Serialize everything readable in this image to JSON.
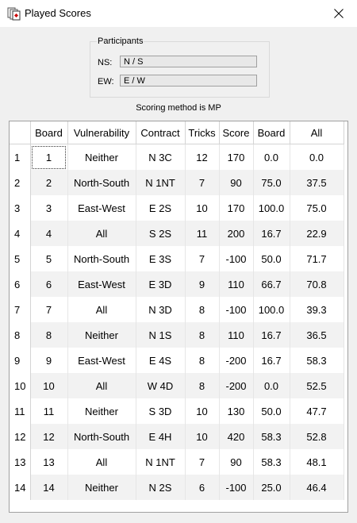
{
  "window": {
    "title": "Played Scores"
  },
  "participants": {
    "label": "Participants",
    "ns_label": "NS:",
    "ns_value": "N / S",
    "ew_label": "EW:",
    "ew_value": "E / W"
  },
  "scoring": "Scoring method is MP",
  "table": {
    "headers": [
      "Board",
      "Vulnerability",
      "Contract",
      "Tricks",
      "Score",
      "Board",
      "All"
    ],
    "rows": [
      {
        "num": "1",
        "board": "1",
        "vul": "Neither",
        "contract": "N 3C",
        "tricks": "12",
        "score": "170",
        "boardpct": "0.0",
        "all": "0.0"
      },
      {
        "num": "2",
        "board": "2",
        "vul": "North-South",
        "contract": "N 1NT",
        "tricks": "7",
        "score": "90",
        "boardpct": "75.0",
        "all": "37.5"
      },
      {
        "num": "3",
        "board": "3",
        "vul": "East-West",
        "contract": "E 2S",
        "tricks": "10",
        "score": "170",
        "boardpct": "100.0",
        "all": "75.0"
      },
      {
        "num": "4",
        "board": "4",
        "vul": "All",
        "contract": "S 2S",
        "tricks": "11",
        "score": "200",
        "boardpct": "16.7",
        "all": "22.9"
      },
      {
        "num": "5",
        "board": "5",
        "vul": "North-South",
        "contract": "E 3S",
        "tricks": "7",
        "score": "-100",
        "boardpct": "50.0",
        "all": "71.7"
      },
      {
        "num": "6",
        "board": "6",
        "vul": "East-West",
        "contract": "E 3D",
        "tricks": "9",
        "score": "110",
        "boardpct": "66.7",
        "all": "70.8"
      },
      {
        "num": "7",
        "board": "7",
        "vul": "All",
        "contract": "N 3D",
        "tricks": "8",
        "score": "-100",
        "boardpct": "100.0",
        "all": "39.3"
      },
      {
        "num": "8",
        "board": "8",
        "vul": "Neither",
        "contract": "N 1S",
        "tricks": "8",
        "score": "110",
        "boardpct": "16.7",
        "all": "36.5"
      },
      {
        "num": "9",
        "board": "9",
        "vul": "East-West",
        "contract": "E 4S",
        "tricks": "8",
        "score": "-200",
        "boardpct": "16.7",
        "all": "58.3"
      },
      {
        "num": "10",
        "board": "10",
        "vul": "All",
        "contract": "W 4D",
        "tricks": "8",
        "score": "-200",
        "boardpct": "0.0",
        "all": "52.5"
      },
      {
        "num": "11",
        "board": "11",
        "vul": "Neither",
        "contract": "S 3D",
        "tricks": "10",
        "score": "130",
        "boardpct": "50.0",
        "all": "47.7"
      },
      {
        "num": "12",
        "board": "12",
        "vul": "North-South",
        "contract": "E 4H",
        "tricks": "10",
        "score": "420",
        "boardpct": "58.3",
        "all": "52.8"
      },
      {
        "num": "13",
        "board": "13",
        "vul": "All",
        "contract": "N 1NT",
        "tricks": "7",
        "score": "90",
        "boardpct": "58.3",
        "all": "48.1"
      },
      {
        "num": "14",
        "board": "14",
        "vul": "Neither",
        "contract": "N 2S",
        "tricks": "6",
        "score": "-100",
        "boardpct": "25.0",
        "all": "46.4"
      }
    ]
  }
}
